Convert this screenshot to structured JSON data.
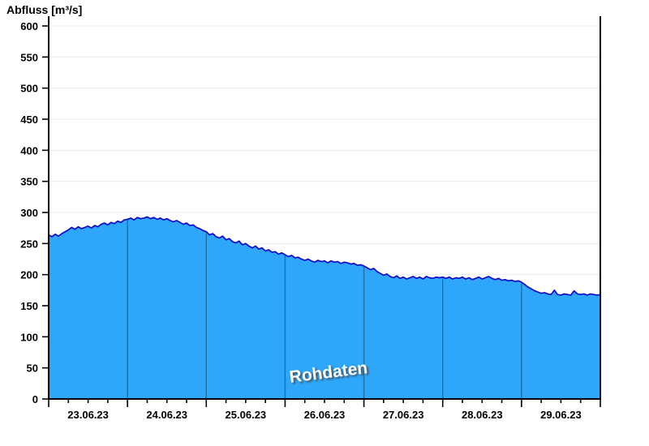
{
  "header": {
    "title": "Abfluss [m³/s]"
  },
  "watermark": {
    "text": "Rohdaten"
  },
  "colors": {
    "area_fill": "#2EA6FA",
    "data_line": "#0B0BCF",
    "day_separator": "#1F6FA0",
    "gridline": "#ECECEC",
    "axis": "#000000",
    "watermark_text": "#FBFBFB",
    "background": "#FFFFFF"
  },
  "chart_data": {
    "type": "area",
    "title": "Abfluss [m³/s]",
    "ylabel": "Abfluss [m³/s]",
    "xlabel": "",
    "ylim": [
      0,
      600
    ],
    "ytick_step": 50,
    "grid": "horizontal-light",
    "legend": "none",
    "annotation": "Rohdaten",
    "x_start": "23.06.2023 00:00",
    "x_end": "30.06.2023 00:00",
    "sample_interval_hours": 1,
    "x_tick_labels": [
      "23.06.23",
      "24.06.23",
      "25.06.23",
      "26.06.23",
      "27.06.23",
      "28.06.23",
      "29.06.23"
    ],
    "minor_xtick_hours": 6,
    "day_boundary_indices": [
      24,
      48,
      72,
      96,
      120,
      144
    ],
    "values": [
      264,
      261,
      265,
      262,
      266,
      269,
      272,
      276,
      273,
      277,
      274,
      276,
      278,
      275,
      279,
      277,
      281,
      283,
      280,
      284,
      282,
      286,
      284,
      288,
      289,
      291,
      288,
      292,
      290,
      291,
      293,
      290,
      292,
      289,
      291,
      288,
      290,
      287,
      285,
      287,
      284,
      281,
      283,
      279,
      280,
      276,
      274,
      271,
      269,
      264,
      266,
      261,
      259,
      262,
      256,
      258,
      253,
      251,
      254,
      248,
      250,
      246,
      243,
      246,
      241,
      243,
      238,
      240,
      236,
      237,
      233,
      235,
      232,
      229,
      231,
      227,
      228,
      225,
      223,
      225,
      222,
      220,
      223,
      221,
      222,
      219,
      222,
      220,
      221,
      218,
      220,
      219,
      217,
      218,
      215,
      216,
      214,
      211,
      208,
      210,
      205,
      202,
      199,
      201,
      197,
      195,
      198,
      194,
      196,
      193,
      195,
      197,
      194,
      196,
      193,
      197,
      195,
      194,
      196,
      195,
      196,
      194,
      196,
      193,
      195,
      194,
      196,
      193,
      195,
      192,
      194,
      196,
      193,
      195,
      197,
      194,
      192,
      194,
      191,
      192,
      190,
      191,
      189,
      190,
      188,
      184,
      180,
      177,
      174,
      172,
      170,
      171,
      169,
      168,
      175,
      168,
      167,
      169,
      168,
      167,
      174,
      169,
      168,
      169,
      167,
      169,
      168,
      167,
      168
    ]
  }
}
